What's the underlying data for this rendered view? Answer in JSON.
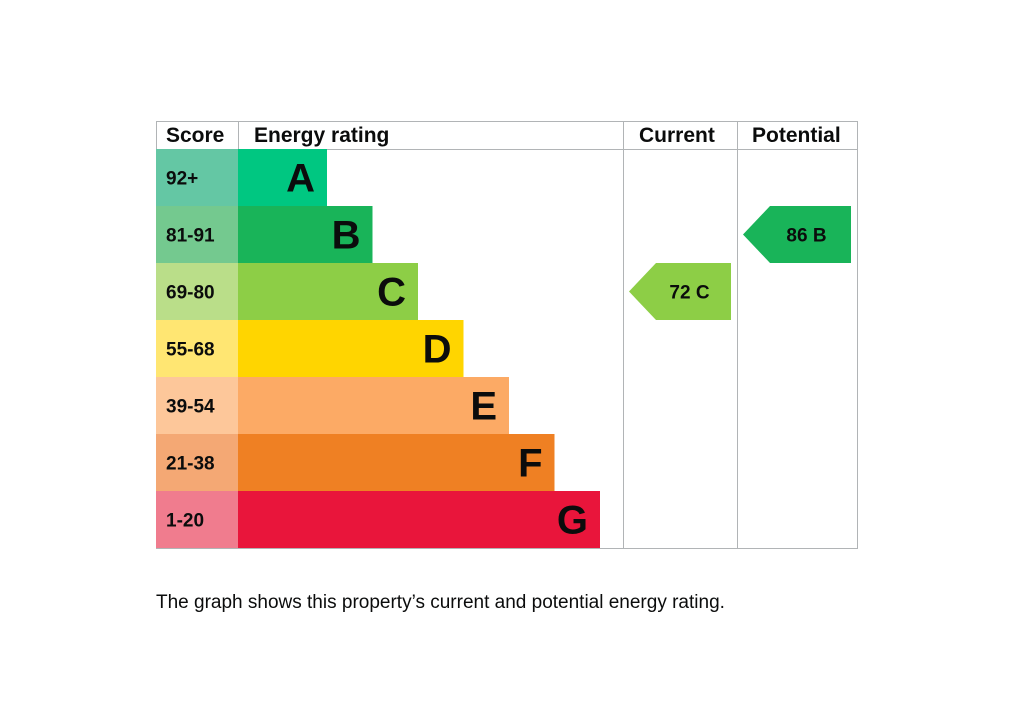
{
  "chart_data": {
    "type": "bar",
    "headers": {
      "score": "Score",
      "rating": "Energy rating",
      "current": "Current",
      "potential": "Potential"
    },
    "bands": [
      {
        "letter": "A",
        "score": "92+",
        "color": "#00c781",
        "score_bg": "#64c7a4"
      },
      {
        "letter": "B",
        "score": "81-91",
        "color": "#19b459",
        "score_bg": "#74c98f"
      },
      {
        "letter": "C",
        "score": "69-80",
        "color": "#8dce46",
        "score_bg": "#bade89"
      },
      {
        "letter": "D",
        "score": "55-68",
        "color": "#ffd500",
        "score_bg": "#ffe672"
      },
      {
        "letter": "E",
        "score": "39-54",
        "color": "#fcaa65",
        "score_bg": "#fdc79a"
      },
      {
        "letter": "F",
        "score": "21-38",
        "color": "#ef8023",
        "score_bg": "#f4a874"
      },
      {
        "letter": "G",
        "score": "1-20",
        "color": "#e9153b",
        "score_bg": "#f07c8e"
      }
    ],
    "current": {
      "value": 72,
      "band": "C",
      "label": "72  C",
      "color": "#8dce46"
    },
    "potential": {
      "value": 86,
      "band": "B",
      "label": "86  B",
      "color": "#19b459"
    }
  },
  "caption": "The graph shows this property’s current and potential energy rating."
}
